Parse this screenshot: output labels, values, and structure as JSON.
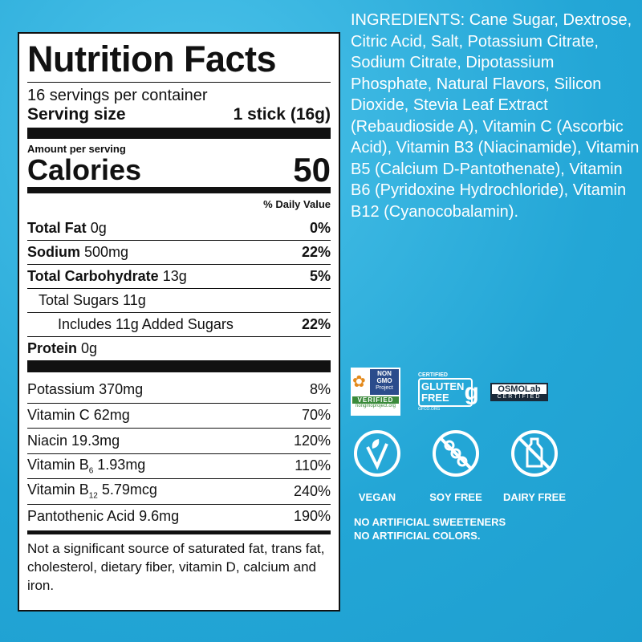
{
  "label": {
    "title": "Nutrition Facts",
    "servings": "16 servings per container",
    "serving_size_label": "Serving size",
    "serving_size_value": "1 stick (16g)",
    "amount_per_serving": "Amount per serving",
    "calories_label": "Calories",
    "calories_value": "50",
    "daily_value_header": "% Daily Value",
    "nutrients": [
      {
        "name": "Total Fat",
        "amount": "0g",
        "dv": "0%"
      },
      {
        "name": "Sodium",
        "amount": "500mg",
        "dv": "22%"
      },
      {
        "name": "Total Carbohydrate",
        "amount": "13g",
        "dv": "5%"
      },
      {
        "name": "Total Sugars 11g",
        "amount": "",
        "dv": ""
      },
      {
        "name": "Includes 11g Added Sugars",
        "amount": "",
        "dv": "22%"
      },
      {
        "name": "Protein",
        "amount": "0g",
        "dv": ""
      }
    ],
    "vitamins": [
      {
        "name": "Potassium",
        "amount": "370mg",
        "dv": "8%"
      },
      {
        "name": "Vitamin C",
        "amount": "62mg",
        "dv": "70%"
      },
      {
        "name": "Niacin",
        "amount": "19.3mg",
        "dv": "120%"
      },
      {
        "name": "Vitamin B",
        "sub": "6",
        "amount": "1.93mg",
        "dv": "110%"
      },
      {
        "name": "Vitamin B",
        "sub": "12",
        "amount": "5.79mcg",
        "dv": "240%"
      },
      {
        "name": "Pantothenic Acid",
        "amount": "9.6mg",
        "dv": "190%"
      }
    ],
    "footnote": "Not a significant source of saturated fat, trans fat, cholesterol, dietary fiber, vitamin D, calcium and iron."
  },
  "ingredients": "INGREDIENTS: Cane Sugar, Dextrose, Citric Acid, Salt, Potassium Citrate, Sodium Citrate, Dipotassium Phosphate, Natural Flavors, Silicon Dioxide, Stevia Leaf Extract (Rebaudioside A), Vitamin C (Ascorbic Acid), Vitamin B3 (Niacinamide), Vitamin B5 (Calcium D-Pantothenate), Vitamin B6 (Pyridoxine Hydrochloride), Vitamin B12 (Cyanocobalamin).",
  "certifications": {
    "non_gmo": {
      "line1": "NON",
      "line2": "GMO",
      "line3": "Project",
      "verified": "VERIFIED",
      "url": "nongmoproject.org"
    },
    "gluten_free": {
      "certified": "CERTIFIED",
      "line1": "GLUTEN",
      "line2": "FREE",
      "url": "GFCO.ORG"
    },
    "osmolab": {
      "name": "OSMOLab",
      "certified": "CERTIFIED"
    }
  },
  "icons": [
    {
      "icon": "vegan-leaf-icon",
      "label": "VEGAN"
    },
    {
      "icon": "soy-free-icon",
      "label": "SOY FREE"
    },
    {
      "icon": "dairy-free-icon",
      "label": "DAIRY FREE"
    }
  ],
  "claims": [
    "NO ARTIFICIAL SWEETENERS",
    "NO ARTIFICIAL COLORS."
  ],
  "colors": {
    "background": "#23a6d6",
    "label_bg": "#ffffff",
    "text": "#111111"
  }
}
